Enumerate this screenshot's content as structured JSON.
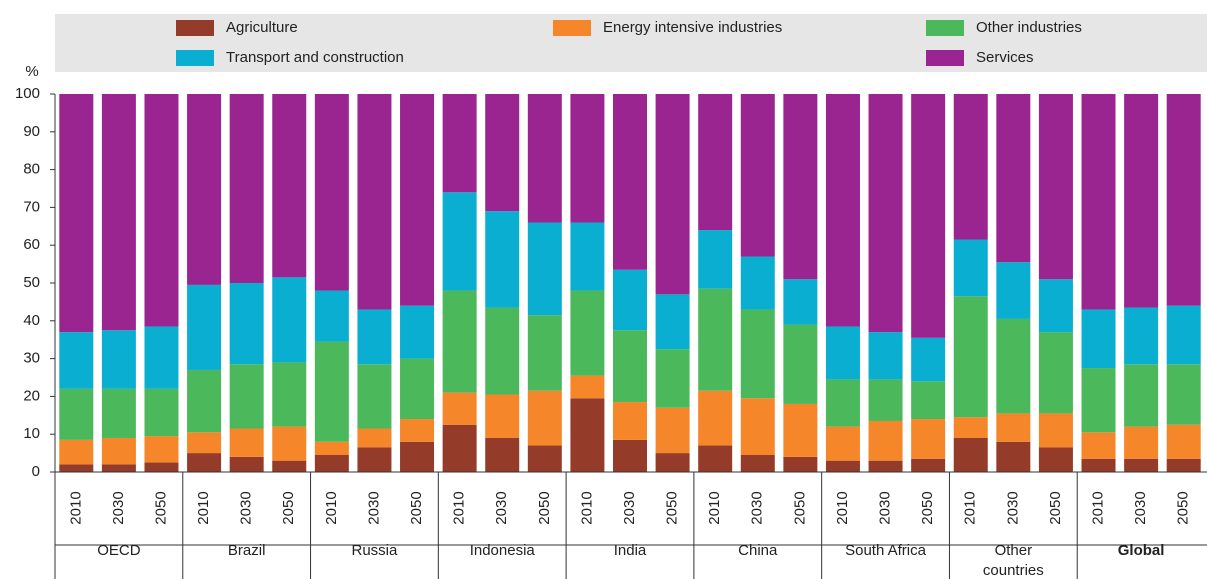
{
  "chart_data": {
    "type": "stacked_bar",
    "y_label": "%",
    "categories": [
      "2010",
      "2030",
      "2050",
      "2010",
      "2030",
      "2050",
      "2010",
      "2030",
      "2050",
      "2010",
      "2030",
      "2050",
      "2010",
      "2030",
      "2050",
      "2010",
      "2030",
      "2050",
      "2010",
      "2030",
      "2050",
      "2010",
      "2030",
      "2050",
      "2010",
      "2030",
      "2050"
    ],
    "groups": [
      {
        "name": "OECD"
      },
      {
        "name": "Brazil"
      },
      {
        "name": "Russia"
      },
      {
        "name": "Indonesia"
      },
      {
        "name": "India"
      },
      {
        "name": "China"
      },
      {
        "name": "South Africa"
      },
      {
        "name": "Other countries"
      },
      {
        "name": "Global",
        "bold": true
      }
    ],
    "series": [
      {
        "name": "Agriculture",
        "color": "#953b29",
        "values": [
          2,
          2,
          2.5,
          5,
          4,
          3,
          4.5,
          6.5,
          8,
          12.5,
          9,
          7,
          19.5,
          8.5,
          5,
          7,
          4.5,
          4,
          3,
          3,
          3.5,
          9,
          8,
          6.5,
          3.5,
          3.5,
          3.5
        ]
      },
      {
        "name": "Energy intensive industries",
        "color": "#f5862a",
        "values": [
          6.5,
          7,
          7,
          5.5,
          7.5,
          9,
          3.5,
          5,
          6,
          8.5,
          11.5,
          14.5,
          6,
          10,
          12,
          14.5,
          15,
          14,
          9,
          10.5,
          10.5,
          5.5,
          7.5,
          9,
          7,
          8.5,
          9
        ]
      },
      {
        "name": "Other industries",
        "color": "#4cb85c",
        "values": [
          13.5,
          13,
          12.5,
          16.5,
          17,
          17,
          26.5,
          17,
          16,
          27,
          23,
          20,
          22.5,
          19,
          15.5,
          27,
          23.5,
          21,
          12.5,
          11,
          10,
          32,
          25,
          21.5,
          17,
          16.5,
          16
        ]
      },
      {
        "name": "Transport and construction",
        "color": "#0aaed0",
        "values": [
          15,
          15.5,
          16.5,
          22.5,
          21.5,
          22.5,
          13.5,
          14.5,
          14,
          26,
          25.5,
          24.5,
          18,
          16,
          14.5,
          15.5,
          14,
          12,
          14,
          12.5,
          11.5,
          15,
          15,
          14,
          15.5,
          15,
          15.5
        ]
      },
      {
        "name": "Services",
        "color": "#9b2590",
        "values": [
          63,
          62.5,
          61.5,
          50.5,
          50,
          48.5,
          52,
          57,
          56,
          26,
          31,
          34,
          34,
          46.5,
          53,
          36,
          43,
          49,
          61.5,
          63,
          64.5,
          38.5,
          44.5,
          49,
          57,
          56.5,
          56
        ]
      }
    ],
    "ylim": [
      0,
      100
    ],
    "yticks": [
      0,
      10,
      20,
      30,
      40,
      50,
      60,
      70,
      80,
      90,
      100
    ],
    "legend": "top"
  }
}
